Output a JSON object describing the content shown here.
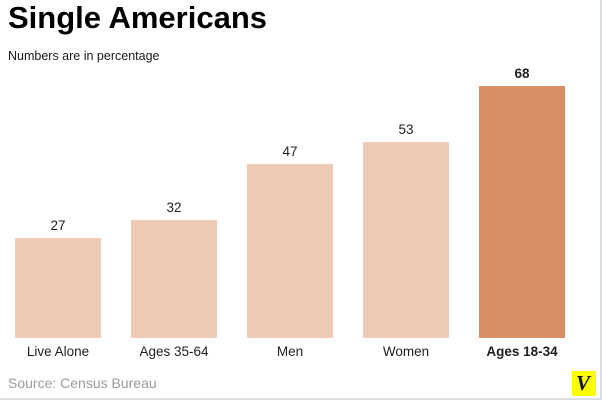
{
  "header": {
    "title": "Single Americans",
    "subtitle": "Numbers are in percentage"
  },
  "footer": {
    "source": "Source: Census Bureau",
    "logo_letter": "V",
    "logo_bg": "#fbff00"
  },
  "chart_data": {
    "type": "bar",
    "title": "Single Americans",
    "subtitle": "Numbers are in percentage",
    "categories": [
      "Live Alone",
      "Ages 35-64",
      "Men",
      "Women",
      "Ages 18-34"
    ],
    "values": [
      27,
      32,
      47,
      53,
      68
    ],
    "value_labels_shown": true,
    "emphasized": [
      false,
      false,
      false,
      false,
      true
    ],
    "bar_color_default": "#eec9b3",
    "bar_color_highlight": "#d78f63",
    "highlight_index": 4,
    "xlabel": "",
    "ylabel": "",
    "ylim": [
      0,
      75
    ],
    "grid": false,
    "legend": false,
    "axis_lines": false
  }
}
